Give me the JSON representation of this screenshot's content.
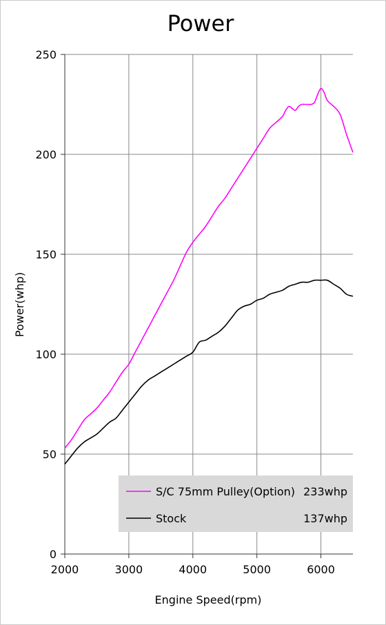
{
  "chart_data": {
    "type": "line",
    "title": "Power",
    "xlabel": "Engine Speed(rpm)",
    "ylabel": "Power(whp)",
    "xlim": [
      2000,
      6500
    ],
    "ylim": [
      0,
      250
    ],
    "x_ticks": [
      2000,
      3000,
      4000,
      5000,
      6000
    ],
    "y_ticks": [
      0,
      50,
      100,
      150,
      200,
      250
    ],
    "grid": true,
    "legend_position": "bottom-right",
    "legend": [
      {
        "name": "S/C 75mm Pulley(Option)",
        "value": "233whp"
      },
      {
        "name": "Stock",
        "value": "137whp"
      }
    ],
    "series": [
      {
        "name": "S/C 75mm Pulley(Option)",
        "color": "#ff00ff",
        "x": [
          2000,
          2100,
          2200,
          2300,
          2400,
          2500,
          2600,
          2700,
          2800,
          2900,
          3000,
          3100,
          3200,
          3300,
          3400,
          3500,
          3600,
          3700,
          3800,
          3900,
          4000,
          4100,
          4200,
          4300,
          4400,
          4500,
          4600,
          4700,
          4800,
          4900,
          5000,
          5100,
          5200,
          5300,
          5400,
          5450,
          5500,
          5550,
          5600,
          5650,
          5700,
          5750,
          5800,
          5850,
          5900,
          5950,
          6000,
          6050,
          6100,
          6200,
          6300,
          6400,
          6500
        ],
        "y": [
          53,
          57,
          62,
          67,
          70,
          73,
          77,
          81,
          86,
          91,
          95,
          101,
          107,
          113,
          119,
          125,
          131,
          137,
          144,
          151,
          156,
          160,
          164,
          169,
          174,
          178,
          183,
          188,
          193,
          198,
          203,
          208,
          213,
          216,
          219,
          222,
          224,
          223,
          222,
          224,
          225,
          225,
          225,
          225,
          226,
          230,
          233,
          231,
          227,
          224,
          220,
          210,
          201
        ]
      },
      {
        "name": "Stock",
        "color": "#000000",
        "x": [
          2000,
          2100,
          2200,
          2300,
          2400,
          2500,
          2600,
          2700,
          2800,
          2900,
          3000,
          3100,
          3200,
          3300,
          3400,
          3500,
          3600,
          3700,
          3800,
          3900,
          4000,
          4100,
          4200,
          4300,
          4400,
          4500,
          4600,
          4700,
          4800,
          4900,
          5000,
          5100,
          5200,
          5300,
          5400,
          5500,
          5600,
          5700,
          5800,
          5900,
          6000,
          6100,
          6200,
          6300,
          6400,
          6500
        ],
        "y": [
          45,
          49,
          53,
          56,
          58,
          60,
          63,
          66,
          68,
          72,
          76,
          80,
          84,
          87,
          89,
          91,
          93,
          95,
          97,
          99,
          101,
          106,
          107,
          109,
          111,
          114,
          118,
          122,
          124,
          125,
          127,
          128,
          130,
          131,
          132,
          134,
          135,
          136,
          136,
          137,
          137,
          137,
          135,
          133,
          130,
          129
        ]
      }
    ]
  }
}
